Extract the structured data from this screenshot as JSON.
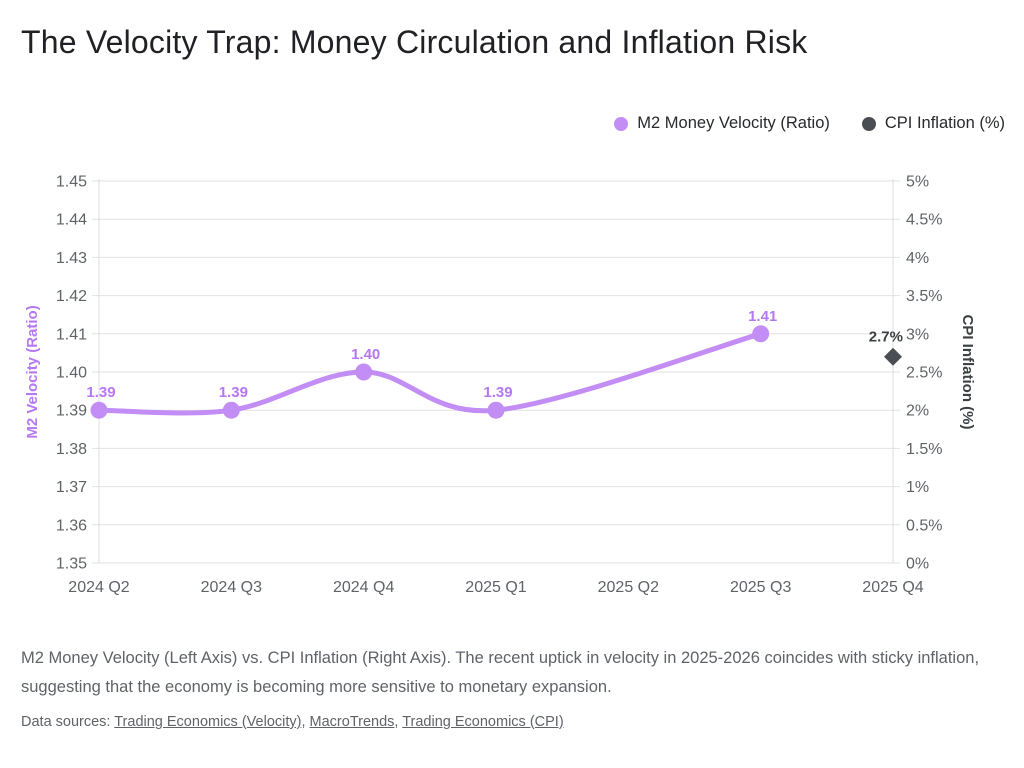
{
  "chart_data": {
    "type": "line",
    "title": "The Velocity Trap: Money Circulation and Inflation Risk",
    "grid": true,
    "legend_position": "top-right",
    "x_axis": {
      "categories": [
        "2024 Q2",
        "2024 Q3",
        "2024 Q4",
        "2025 Q1",
        "2025 Q2",
        "2025 Q3",
        "2025 Q4"
      ]
    },
    "left_axis": {
      "label": "M2 Velocity (Ratio)",
      "min": 1.35,
      "max": 1.45,
      "tick_values": [
        1.35,
        1.36,
        1.37,
        1.38,
        1.39,
        1.4,
        1.41,
        1.42,
        1.43,
        1.44,
        1.45
      ],
      "tick_labels": [
        "1.35",
        "1.36",
        "1.37",
        "1.38",
        "1.39",
        "1.40",
        "1.41",
        "1.42",
        "1.43",
        "1.44",
        "1.45"
      ]
    },
    "right_axis": {
      "label": "CPI Inflation (%)",
      "min": 0,
      "max": 5,
      "tick_values": [
        0,
        0.5,
        1,
        1.5,
        2,
        2.5,
        3,
        3.5,
        4,
        4.5,
        5
      ],
      "tick_labels": [
        "0%",
        "0.5%",
        "1%",
        "1.5%",
        "2%",
        "2.5%",
        "3%",
        "3.5%",
        "4%",
        "4.5%",
        "5%"
      ]
    },
    "series": [
      {
        "name": "M2 Money Velocity (Ratio)",
        "axis": "left",
        "marker": "circle",
        "color": "#c28df4",
        "label_color": "#b678f2",
        "points": [
          {
            "category": "2024 Q2",
            "index": 0,
            "value": 1.39,
            "label": "1.39"
          },
          {
            "category": "2024 Q3",
            "index": 1,
            "value": 1.39,
            "label": "1.39"
          },
          {
            "category": "2024 Q4",
            "index": 2,
            "value": 1.4,
            "label": "1.40"
          },
          {
            "category": "2025 Q1",
            "index": 3,
            "value": 1.39,
            "label": "1.39"
          },
          {
            "category": "2025 Q3",
            "index": 5,
            "value": 1.41,
            "label": "1.41"
          }
        ]
      },
      {
        "name": "CPI Inflation (%)",
        "axis": "right",
        "marker": "diamond",
        "color": "#4a4e54",
        "label_color": "#3c4043",
        "points": [
          {
            "category": "2025 Q4",
            "index": 6,
            "value": 2.7,
            "label": "2.7%"
          }
        ]
      }
    ]
  },
  "caption": {
    "text": "M2 Money Velocity (Left Axis) vs. CPI Inflation (Right Axis). The recent uptick in velocity in 2025-2026 coincides with sticky inflation, suggesting that the economy is becoming more sensitive to monetary expansion."
  },
  "sources": {
    "prefix": "Data sources: ",
    "separator": ", ",
    "links": [
      {
        "label": "Trading Economics (Velocity)"
      },
      {
        "label": "MacroTrends"
      },
      {
        "label": "Trading Economics (CPI)"
      }
    ]
  }
}
